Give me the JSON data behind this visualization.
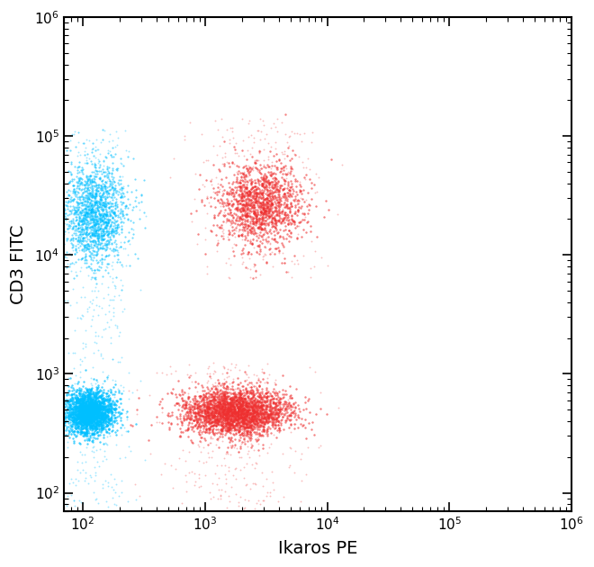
{
  "xlabel": "Ikaros PE",
  "ylabel": "CD3 FITC",
  "xlim_log": [
    70,
    1000000.0
  ],
  "ylim_log": [
    70,
    1000000.0
  ],
  "background_color": "#ffffff",
  "cyan_color": "#00BFFF",
  "red_color": "#EE3030",
  "clusters": [
    {
      "name": "cyan_low_left",
      "color": "#00BFFF",
      "center_x_log": 2.05,
      "center_y_log": 2.68,
      "spread_x": 0.1,
      "spread_y": 0.09,
      "n_points": 2200,
      "alpha": 0.7,
      "size": 3
    },
    {
      "name": "cyan_upper_left",
      "color": "#00BFFF",
      "center_x_log": 2.1,
      "center_y_log": 4.35,
      "spread_x": 0.13,
      "spread_y": 0.2,
      "n_points": 1600,
      "alpha": 0.55,
      "size": 2.5
    },
    {
      "name": "red_low_center",
      "color": "#EE3030",
      "center_x_log": 3.25,
      "center_y_log": 2.68,
      "spread_x": 0.22,
      "spread_y": 0.1,
      "n_points": 2800,
      "alpha": 0.6,
      "size": 3
    },
    {
      "name": "red_upper_center",
      "color": "#EE3030",
      "center_x_log": 3.45,
      "center_y_log": 4.42,
      "spread_x": 0.17,
      "spread_y": 0.17,
      "n_points": 1400,
      "alpha": 0.6,
      "size": 3
    }
  ],
  "cyan_sparse": {
    "color": "#00BFFF",
    "x_log_center": 2.1,
    "x_log_spread": 0.15,
    "y_log_min": 1.87,
    "y_log_max": 5.05,
    "n": 500,
    "size": 1.8,
    "alpha": 0.35
  },
  "red_sparse_low": {
    "color": "#EE3030",
    "x_log_center": 3.2,
    "x_log_spread": 0.3,
    "y_log_min": 1.87,
    "y_log_max": 3.1,
    "n": 350,
    "size": 1.8,
    "alpha": 0.3
  },
  "red_sparse_high": {
    "color": "#EE3030",
    "x_log_center": 3.4,
    "x_log_spread": 0.25,
    "y_log_min": 3.8,
    "y_log_max": 5.15,
    "n": 300,
    "size": 1.8,
    "alpha": 0.3
  },
  "xlabel_fontsize": 14,
  "ylabel_fontsize": 14,
  "tick_fontsize": 11
}
